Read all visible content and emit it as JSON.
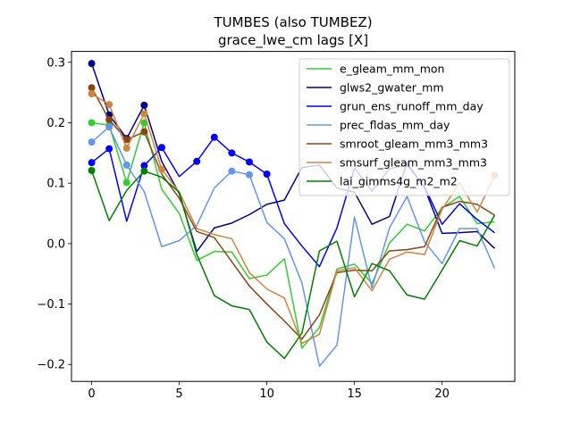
{
  "chart_data": {
    "type": "line",
    "title_line1": "TUMBES (also TUMBEZ)",
    "title_line2": "grace_lwe_cm lags [X]",
    "xlabel": "",
    "ylabel": "",
    "xlim": [
      -1.15,
      24.15
    ],
    "ylim": [
      -0.228,
      0.318
    ],
    "xticks": [
      0,
      5,
      10,
      15,
      20
    ],
    "yticks": [
      -0.2,
      -0.1,
      0.0,
      0.1,
      0.2,
      0.3
    ],
    "ytick_labels": [
      "−0.2",
      "−0.1",
      "0.0",
      "0.1",
      "0.2",
      "0.3"
    ],
    "grid": false,
    "legend_position": "upper right",
    "x": [
      0,
      1,
      2,
      3,
      4,
      5,
      6,
      7,
      8,
      9,
      10,
      11,
      12,
      13,
      14,
      15,
      16,
      17,
      18,
      19,
      20,
      21,
      22,
      23
    ],
    "series": [
      {
        "name": "e_gleam_mm_mon",
        "color": "#32cd32",
        "values": [
          0.2,
          0.196,
          0.101,
          0.2,
          0.09,
          0.05,
          -0.028,
          -0.013,
          -0.014,
          -0.058,
          -0.052,
          -0.025,
          -0.173,
          -0.139,
          -0.042,
          -0.034,
          -0.066,
          0.001,
          0.032,
          0.021,
          0.059,
          0.078,
          0.033,
          0.036
        ],
        "markers": [
          0,
          1,
          2,
          3
        ]
      },
      {
        "name": "glws2_gwater_mm",
        "color": "#00008b",
        "values": [
          0.298,
          0.213,
          0.174,
          0.229,
          0.136,
          0.083,
          -0.013,
          0.026,
          0.034,
          0.048,
          0.065,
          0.072,
          0.126,
          0.13,
          0.092,
          0.085,
          0.032,
          0.045,
          0.134,
          0.092,
          0.017,
          0.018,
          0.02,
          -0.008
        ],
        "markers": [
          0,
          1,
          2,
          3
        ]
      },
      {
        "name": "grun_ens_runoff_mm_day",
        "color": "#0000ff",
        "values": [
          0.134,
          0.157,
          0.037,
          0.129,
          0.159,
          0.111,
          0.136,
          0.176,
          0.15,
          0.135,
          0.115,
          0.033,
          -0.004,
          -0.038,
          0.026,
          0.125,
          0.087,
          0.124,
          0.13,
          0.094,
          0.032,
          0.066,
          0.04,
          0.018
        ],
        "markers": [
          0,
          1,
          3,
          4,
          6,
          7,
          8,
          9,
          10
        ]
      },
      {
        "name": "prec_fldas_mm_day",
        "color": "#6495ed",
        "values": [
          0.168,
          0.193,
          0.13,
          0.086,
          -0.005,
          0.005,
          0.03,
          0.092,
          0.12,
          0.114,
          0.035,
          0.008,
          -0.065,
          -0.203,
          -0.168,
          0.044,
          -0.073,
          0.026,
          0.078,
          0.003,
          -0.033,
          0.025,
          0.025,
          -0.041
        ],
        "markers": [
          0,
          1,
          2,
          8,
          9
        ]
      },
      {
        "name": "smroot_gleam_mm3_mm3",
        "color": "#8b4513",
        "values": [
          0.258,
          0.205,
          0.172,
          0.185,
          0.115,
          0.075,
          0.02,
          0.01,
          -0.03,
          -0.07,
          -0.1,
          -0.128,
          -0.158,
          -0.118,
          -0.048,
          -0.044,
          -0.045,
          -0.012,
          -0.01,
          -0.005,
          0.06,
          0.07,
          0.065,
          0.047
        ],
        "markers": [
          0,
          1,
          2,
          3
        ]
      },
      {
        "name": "smsurf_gleam_mm3_mm3",
        "color": "#cd853f",
        "values": [
          0.248,
          0.23,
          0.158,
          0.215,
          0.123,
          0.085,
          0.025,
          0.015,
          0.008,
          -0.048,
          -0.075,
          -0.09,
          -0.165,
          -0.15,
          -0.045,
          -0.04,
          -0.078,
          -0.026,
          -0.014,
          -0.018,
          0.057,
          0.1,
          0.052,
          0.113
        ],
        "markers": [
          0,
          1,
          2,
          3,
          4,
          23
        ]
      },
      {
        "name": "lai_gimms4g_m2_m2",
        "color": "#008000",
        "values": [
          0.121,
          0.038,
          0.088,
          0.12,
          0.11,
          0.085,
          -0.018,
          -0.086,
          -0.103,
          -0.109,
          -0.163,
          -0.19,
          -0.148,
          -0.012,
          0.004,
          -0.088,
          -0.033,
          -0.045,
          -0.085,
          -0.092,
          -0.044,
          0.005,
          -0.004,
          0.047
        ],
        "markers": [
          0,
          3
        ]
      }
    ]
  }
}
